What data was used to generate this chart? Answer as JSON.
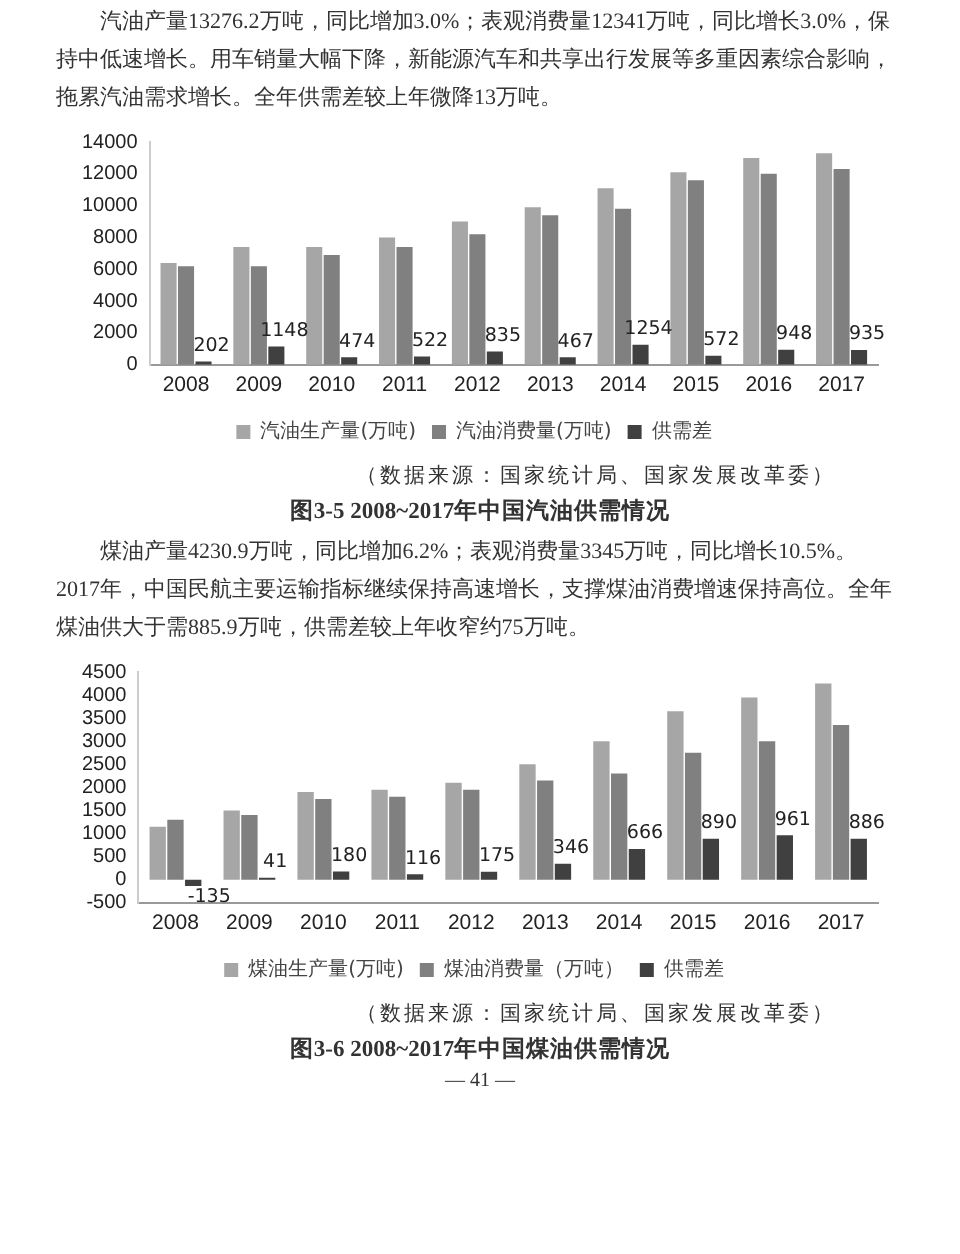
{
  "chart_data": [
    {
      "type": "bar",
      "title": "图3-5 2008~2017年中国汽油供需情况",
      "annotations": [
        "汽油产量13276.2万吨，同比增加3.0%；表观消费量12341万吨，同比增长3.0%，保持中低速增长。用车销量大幅下降，新能源汽车和共享出行发展等多重因素综合影响，拖累汽油需求增长。全年供需差较上年微降13万吨。",
        "（数据来源：国家统计局、国家发展改革委）"
      ],
      "categories": [
        "2008",
        "2009",
        "2010",
        "2011",
        "2012",
        "2013",
        "2014",
        "2015",
        "2016",
        "2017"
      ],
      "series": [
        {
          "name": "汽油生产量(万吨)",
          "color": "#a6a6a6",
          "values": [
            6400,
            7400,
            7400,
            8000,
            9000,
            9900,
            11100,
            12100,
            13000,
            13300
          ]
        },
        {
          "name": "汽油消费量(万吨)",
          "color": "#808080",
          "values": [
            6200,
            6200,
            6900,
            7400,
            8200,
            9400,
            9800,
            11600,
            12000,
            12300
          ]
        },
        {
          "name": "供需差",
          "color": "#404040",
          "values": [
            202,
            1148,
            474,
            522,
            835,
            467,
            1254,
            572,
            948,
            935
          ],
          "value_labels": [
            "202",
            "1148",
            "474",
            "522",
            "835",
            "467",
            "1254",
            "572",
            "948",
            "935"
          ]
        }
      ],
      "ylim": [
        0,
        14000
      ],
      "yticks": [
        0,
        2000,
        4000,
        6000,
        8000,
        10000,
        12000,
        14000
      ],
      "grid": false,
      "legend": "bottom"
    },
    {
      "type": "bar",
      "title": "图3-6 2008~2017年中国煤油供需情况",
      "annotations": [
        "煤油产量4230.9万吨，同比增加6.2%；表观消费量3345万吨，同比增长10.5%。2017年，中国民航主要运输指标继续保持高速增长，支撑煤油消费增速保持高位。全年煤油供大于需885.9万吨，供需差较上年收窄约75万吨。",
        "（数据来源：国家统计局、国家发展改革委）",
        "— 41 —"
      ],
      "categories": [
        "2008",
        "2009",
        "2010",
        "2011",
        "2012",
        "2013",
        "2014",
        "2015",
        "2016",
        "2017"
      ],
      "series": [
        {
          "name": "煤油生产量(万吨)",
          "color": "#a6a6a6",
          "values": [
            1150,
            1500,
            1900,
            1950,
            2100,
            2500,
            3000,
            3650,
            3950,
            4250
          ]
        },
        {
          "name": "煤油消费量（万吨）",
          "color": "#808080",
          "values": [
            1300,
            1400,
            1750,
            1800,
            1950,
            2150,
            2300,
            2750,
            3000,
            3350
          ]
        },
        {
          "name": "供需差",
          "color": "#404040",
          "values": [
            -135,
            41,
            180,
            116,
            175,
            346,
            666,
            890,
            961,
            886
          ],
          "value_labels": [
            "-135",
            "41",
            "180",
            "116",
            "175",
            "346",
            "666",
            "890",
            "961",
            "886"
          ]
        }
      ],
      "ylim": [
        -500,
        4500
      ],
      "yticks": [
        -500,
        0,
        500,
        1000,
        1500,
        2000,
        2500,
        3000,
        3500,
        4000,
        4500
      ],
      "grid": false,
      "legend": "bottom"
    }
  ]
}
